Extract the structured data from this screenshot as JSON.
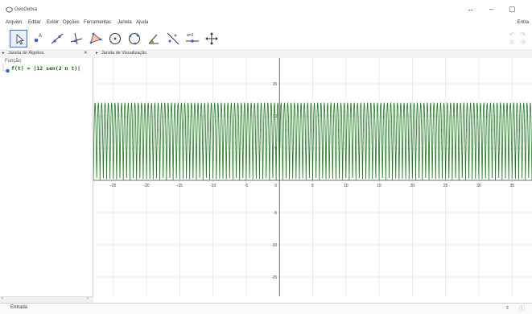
{
  "window": {
    "title": "GeoGebra",
    "controls": [
      "↔",
      "–",
      "▢"
    ]
  },
  "menu": [
    "Arquivo",
    "Editar",
    "Exibir",
    "Opções",
    "Ferramentas",
    "Janela",
    "Ajuda"
  ],
  "menu_right_label": "Entra",
  "toolbar": {
    "tools": [
      "move-tool",
      "point-tool",
      "line-tool",
      "perpendicular-tool",
      "polygon-tool",
      "circle-tool",
      "conic-tool",
      "angle-tool",
      "reflect-tool",
      "slider-tool",
      "move-view-tool"
    ],
    "slider_label": "a=2"
  },
  "algebra_view": {
    "title": "Janela de Álgebra",
    "category": "Função",
    "entries": [
      {
        "text": "f(t) = |12 sen(2 π t)|",
        "color": "#006400"
      }
    ]
  },
  "graphics_view": {
    "title": "Janela de Visualização"
  },
  "input_bar": {
    "label": "Entrada"
  },
  "colors": {
    "curve": "#1e7a1e",
    "selected_tool": "#3a6fd8",
    "point": "#3a5fcd"
  },
  "chart_data": {
    "type": "line",
    "function": "f(t) = |12 sen(2 π t)|",
    "xlim": [
      -28,
      38
    ],
    "ylim": [
      -18,
      19
    ],
    "x_ticks": [
      -25,
      -20,
      -15,
      -10,
      -5,
      5,
      10,
      15,
      20,
      25,
      30,
      35
    ],
    "y_ticks": [
      15,
      10,
      5,
      -5,
      -10,
      -15
    ],
    "grid": true,
    "series": [
      {
        "color": "#1e7a1e",
        "amplitude": 12,
        "frequency": 2
      }
    ]
  }
}
